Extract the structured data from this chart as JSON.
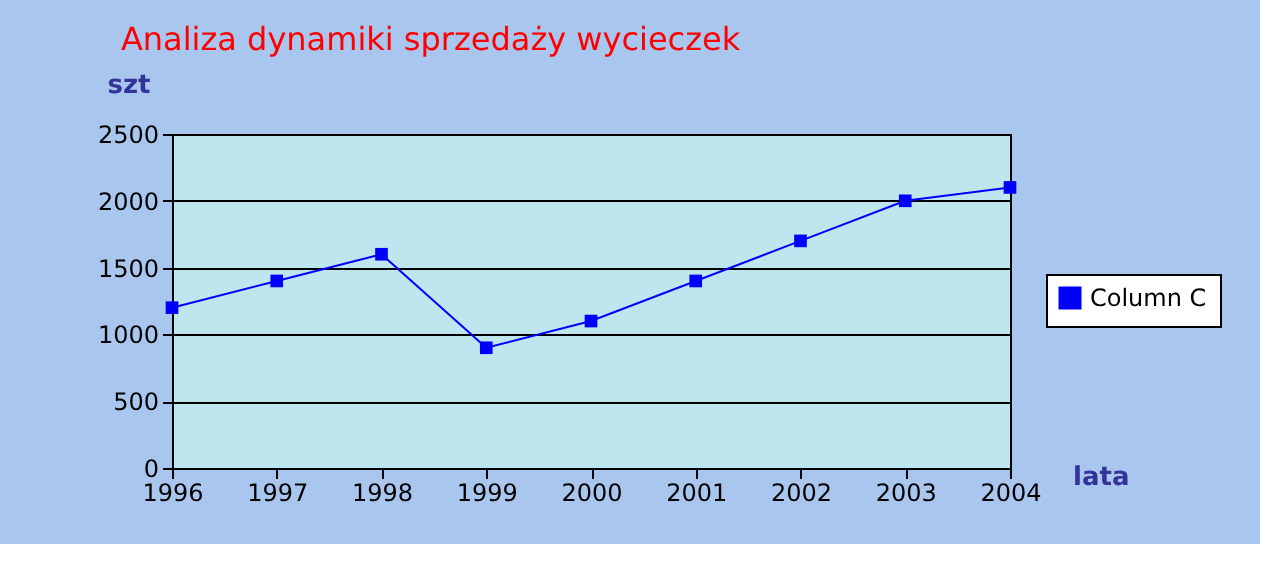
{
  "chart_data": {
    "type": "line",
    "title": "Analiza dynamiki sprzedaży wycieczek",
    "ylabel": "szt",
    "xlabel": "lata",
    "x": [
      1996,
      1997,
      1998,
      1999,
      2000,
      2001,
      2002,
      2003,
      2004
    ],
    "series": [
      {
        "name": "Column C",
        "color": "#0000ff",
        "values": [
          1200,
          1400,
          1600,
          900,
          1100,
          1400,
          1700,
          2000,
          2100
        ]
      }
    ],
    "xlim": [
      1996,
      2004
    ],
    "xticks": [
      1996,
      1997,
      1998,
      1999,
      2000,
      2001,
      2002,
      2003,
      2004
    ],
    "ylim": [
      0,
      2500
    ],
    "yticks": [
      0,
      500,
      1000,
      1500,
      2000,
      2500
    ],
    "grid": "y",
    "legend": "right",
    "marker": "square",
    "line_style": "solid"
  }
}
